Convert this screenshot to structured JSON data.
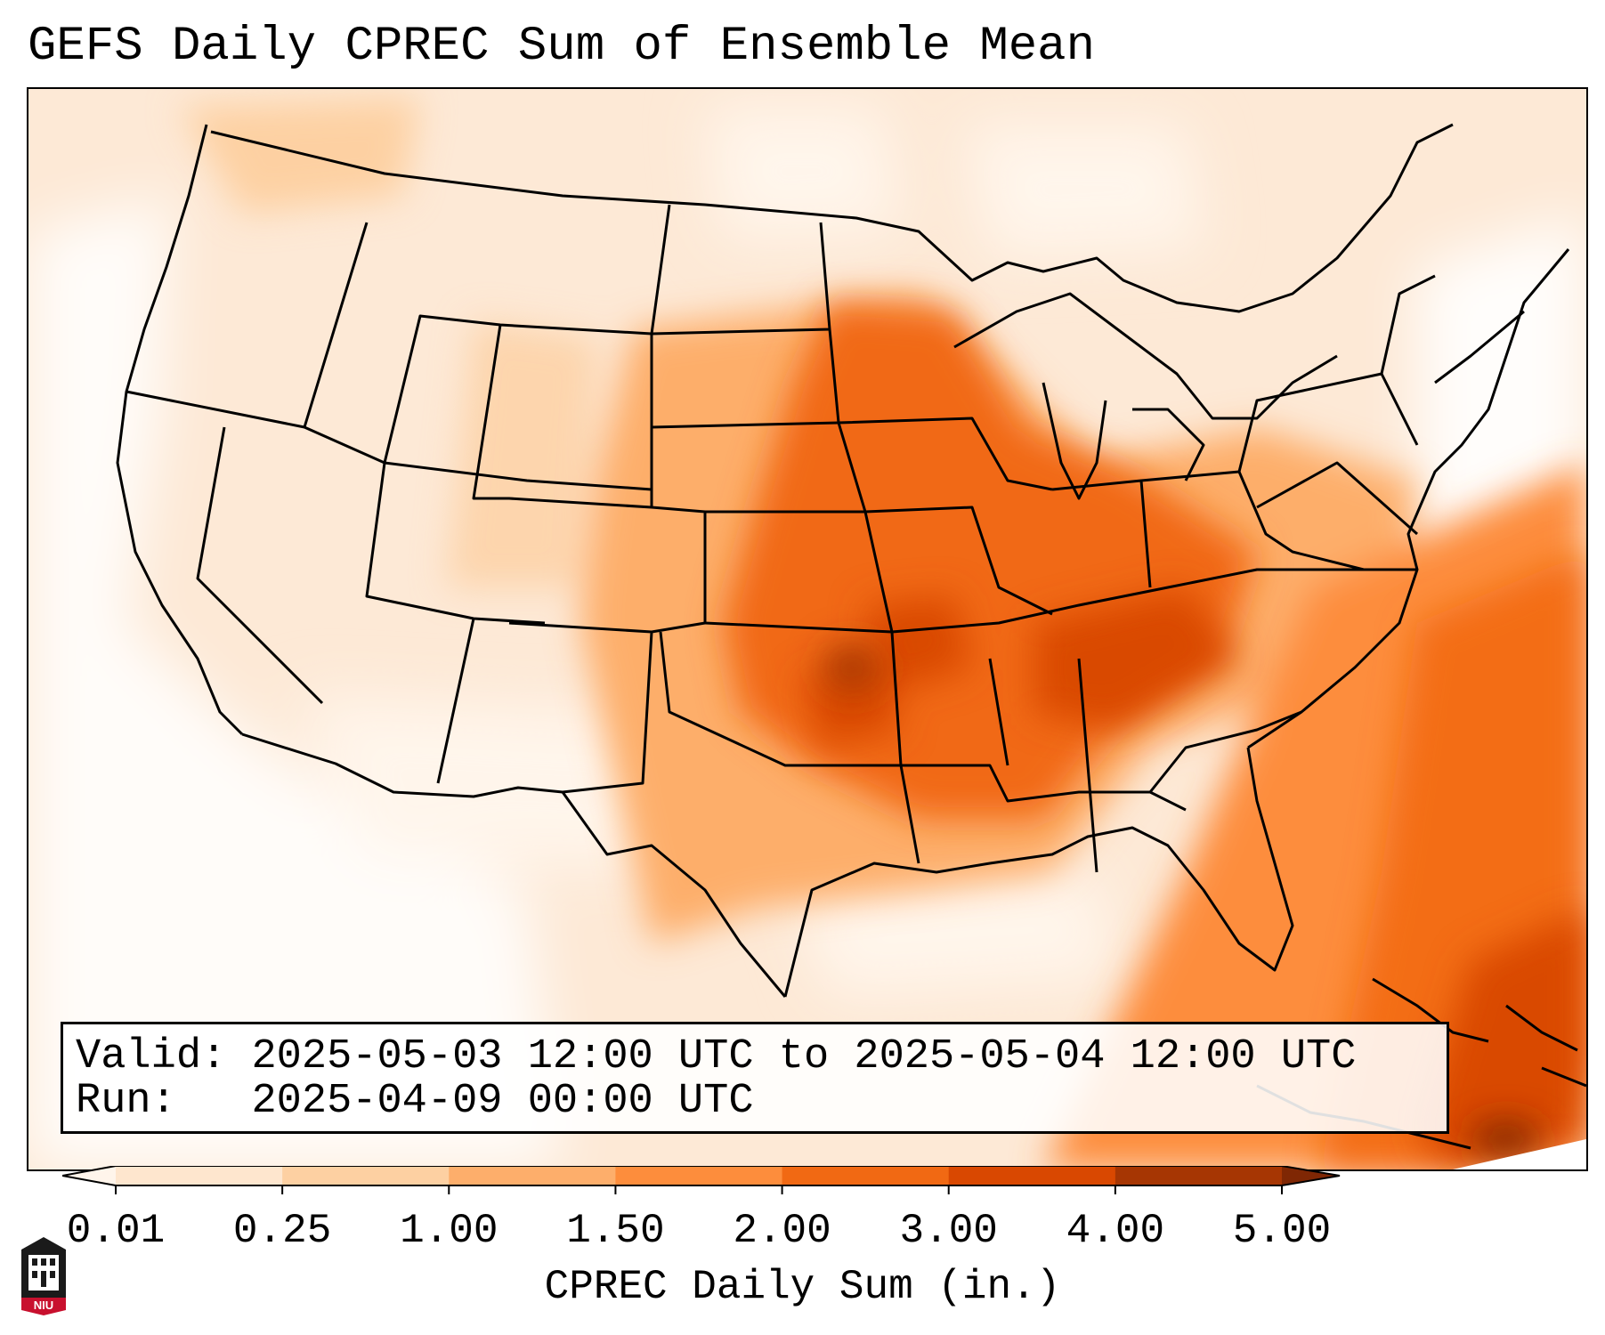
{
  "title": "GEFS Daily CPREC Sum of Ensemble Mean",
  "info": {
    "valid_label": "Valid:",
    "valid_value": "2025-05-03 12:00 UTC to 2025-05-04 12:00 UTC",
    "run_label": "Run:",
    "run_value": "2025-04-09 00:00 UTC"
  },
  "colorbar": {
    "label": "CPREC Daily Sum (in.)",
    "ticks": [
      "0.01",
      "0.25",
      "1.00",
      "1.50",
      "2.00",
      "3.00",
      "4.00",
      "5.00"
    ],
    "colors": [
      "#fff5eb",
      "#fee6ce",
      "#fdd0a2",
      "#fdae6b",
      "#fd8d3c",
      "#f16913",
      "#d94801",
      "#a63603",
      "#7f2704"
    ],
    "extend": "both"
  },
  "logo": {
    "text": "NIU",
    "colors": {
      "red": "#c8102e",
      "black": "#1a1a1a"
    }
  },
  "map": {
    "projection": "Lambert conformal, contiguous United States",
    "field": "GEFS ensemble mean daily convective precipitation",
    "borders": "state and national boundaries in black"
  }
}
